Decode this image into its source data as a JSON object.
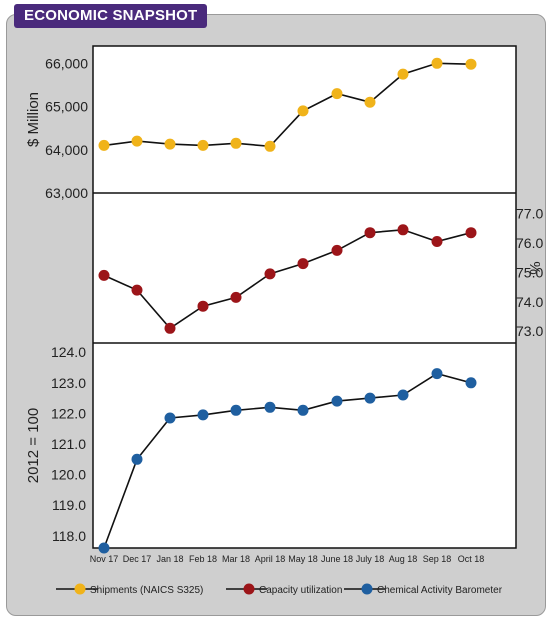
{
  "header": {
    "title": "ECONOMIC SNAPSHOT"
  },
  "chart_data": [
    {
      "type": "line",
      "categories": [
        "Nov 17",
        "Dec 17",
        "Jan 18",
        "Feb 18",
        "Mar 18",
        "April 18",
        "May 18",
        "June 18",
        "July 18",
        "Aug 18",
        "Sep 18",
        "Oct 18"
      ],
      "series": [
        {
          "name": "Shipments (NAICS S325)",
          "color": "#f0b31a",
          "values": [
            64100,
            64200,
            64130,
            64100,
            64150,
            64080,
            64900,
            65300,
            65100,
            65750,
            66000,
            65980
          ]
        }
      ],
      "ylabel": "$ Million",
      "ylim": [
        63000,
        66400
      ],
      "yticks": [
        "63,000",
        "64,000",
        "65,000",
        "66,000"
      ],
      "ytick_values": [
        63000,
        64000,
        65000,
        66000
      ]
    },
    {
      "type": "line",
      "categories": [
        "Nov 17",
        "Dec 17",
        "Jan 18",
        "Feb 18",
        "Mar 18",
        "April 18",
        "May 18",
        "June 18",
        "July 18",
        "Aug 18",
        "Sep 18",
        "Oct 18"
      ],
      "series": [
        {
          "name": "Capacity utilization",
          "color": "#9c1519",
          "values": [
            74.9,
            74.4,
            73.1,
            73.85,
            74.15,
            74.95,
            75.3,
            75.75,
            76.35,
            76.45,
            76.05,
            76.35
          ]
        }
      ],
      "ylabel": "%",
      "ylim": [
        72.6,
        77.7
      ],
      "yticks": [
        "73.0",
        "74.0",
        "75.0",
        "76.0",
        "77.0"
      ],
      "ytick_values": [
        73,
        74,
        75,
        76,
        77
      ]
    },
    {
      "type": "line",
      "categories": [
        "Nov 17",
        "Dec 17",
        "Jan 18",
        "Feb 18",
        "Mar 18",
        "April 18",
        "May 18",
        "June 18",
        "July 18",
        "Aug 18",
        "Sep 18",
        "Oct 18"
      ],
      "series": [
        {
          "name": "Chemical Activity Barometer",
          "color": "#1f5fa0",
          "values": [
            117.6,
            120.5,
            121.85,
            121.95,
            122.1,
            122.2,
            122.1,
            122.4,
            122.5,
            122.6,
            123.3,
            123.0
          ]
        }
      ],
      "ylabel": "2012 = 100",
      "ylim": [
        117.6,
        124.3
      ],
      "yticks": [
        "118.0",
        "119.0",
        "120.0",
        "121.0",
        "122.0",
        "123.0",
        "124.0"
      ],
      "ytick_values": [
        118,
        119,
        120,
        121,
        122,
        123,
        124
      ]
    }
  ],
  "legend": {
    "placement": "bottom",
    "items": [
      {
        "label": "Shipments (NAICS S325)",
        "color": "#f0b31a"
      },
      {
        "label": "Capacity utilization",
        "color": "#9c1519"
      },
      {
        "label": "Chemical Activity Barometer",
        "color": "#1f5fa0"
      }
    ]
  }
}
